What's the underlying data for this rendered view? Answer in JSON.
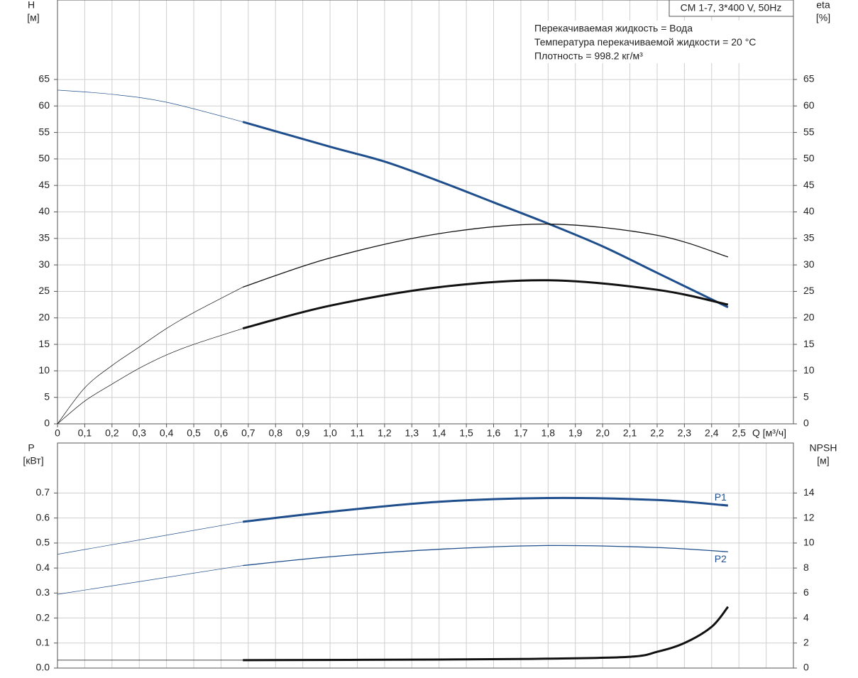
{
  "chart_data": [
    {
      "type": "line",
      "title": "CM 1-7, 3*400 V, 50Hz",
      "annotations": [
        "Перекачиваемая жидкость = Вода",
        "Температура перекачиваемой жидкости = 20 °C",
        "Плотность = 998.2 кг/м³"
      ],
      "y_label": "H",
      "y_unit": "[м]",
      "y2_label": "eta",
      "y2_unit": "[%]",
      "x_label": "Q [м³/ч]",
      "xlim": [
        0,
        2.7
      ],
      "xticks": [
        0,
        {
          "value": 0.1,
          "label": "0,1"
        },
        {
          "value": 0.2,
          "label": "0,2"
        },
        {
          "value": 0.3,
          "label": "0,3"
        },
        {
          "value": 0.4,
          "label": "0,4"
        },
        {
          "value": 0.5,
          "label": "0,5"
        },
        {
          "value": 0.6,
          "label": "0,6"
        },
        {
          "value": 0.7,
          "label": "0,7"
        },
        {
          "value": 0.8,
          "label": "0,8"
        },
        {
          "value": 0.9,
          "label": "0,9"
        },
        {
          "value": 1.0,
          "label": "1,0"
        },
        {
          "value": 1.1,
          "label": "1,1"
        },
        {
          "value": 1.2,
          "label": "1,2"
        },
        {
          "value": 1.3,
          "label": "1,3"
        },
        {
          "value": 1.4,
          "label": "1,4"
        },
        {
          "value": 1.5,
          "label": "1,5"
        },
        {
          "value": 1.6,
          "label": "1,6"
        },
        {
          "value": 1.7,
          "label": "1,7"
        },
        {
          "value": 1.8,
          "label": "1,8"
        },
        {
          "value": 1.9,
          "label": "1,9"
        },
        {
          "value": 2.0,
          "label": "2,0"
        },
        {
          "value": 2.1,
          "label": "2,1"
        },
        {
          "value": 2.2,
          "label": "2,2"
        },
        {
          "value": 2.3,
          "label": "2,3"
        },
        {
          "value": 2.4,
          "label": "2,4"
        },
        {
          "value": 2.5,
          "label": "2,5"
        }
      ],
      "ylim": [
        0,
        80
      ],
      "yticks": [
        0,
        5,
        10,
        15,
        20,
        25,
        30,
        35,
        40,
        45,
        50,
        55,
        60,
        65
      ],
      "y2lim": [
        0,
        80
      ],
      "y2ticks": [
        0,
        5,
        10,
        15,
        20,
        25,
        30,
        35,
        40,
        45,
        50,
        55,
        60,
        65
      ],
      "grid": true,
      "bold_from_x": 0.68,
      "series": [
        {
          "color": "#1f4e8c",
          "bold": true,
          "x": [
            0,
            0.2,
            0.4,
            0.68,
            1.0,
            1.2,
            1.4,
            1.6,
            1.8,
            2.0,
            2.2,
            2.46
          ],
          "values": [
            63,
            62.2,
            60.7,
            57,
            52.3,
            49.5,
            45.8,
            41.8,
            37.8,
            33.5,
            28.5,
            22
          ]
        },
        {
          "color": "#111111",
          "bold": false,
          "axis": "y2",
          "x": [
            0,
            0.1,
            0.2,
            0.3,
            0.4,
            0.5,
            0.68,
            1.0,
            1.4,
            1.8,
            2.2,
            2.46
          ],
          "values": [
            0,
            6.8,
            11,
            14.5,
            18,
            21,
            25.8,
            31.3,
            35.9,
            37.7,
            35.6,
            31.5
          ]
        },
        {
          "color": "#111111",
          "bold": true,
          "axis": "y2",
          "x": [
            0,
            0.1,
            0.2,
            0.3,
            0.4,
            0.5,
            0.68,
            1.0,
            1.4,
            1.8,
            2.2,
            2.46
          ],
          "values": [
            0,
            4.3,
            7.5,
            10.5,
            13,
            15,
            18,
            22.3,
            25.8,
            27.1,
            25.3,
            22.5
          ]
        }
      ]
    },
    {
      "type": "line",
      "y_label": "P",
      "y_unit": "[кВт]",
      "y2_label": "NPSH",
      "y2_unit": "[м]",
      "xlim": [
        0,
        2.7
      ],
      "xgrid": [
        0,
        0.1,
        0.2,
        0.3,
        0.4,
        0.5,
        0.6,
        0.7,
        0.8,
        0.9,
        1.0,
        1.1,
        1.2,
        1.3,
        1.4,
        1.5,
        1.6,
        1.7,
        1.8,
        1.9,
        2.0,
        2.1,
        2.2,
        2.3,
        2.4,
        2.5,
        2.6
      ],
      "ylim": [
        0,
        0.9
      ],
      "yticks": [
        {
          "value": 0,
          "label": "0.0"
        },
        0.1,
        0.2,
        0.3,
        0.4,
        0.5,
        0.6,
        0.7
      ],
      "y2lim": [
        0,
        18
      ],
      "y2ticks": [
        0,
        2,
        4,
        6,
        8,
        10,
        12,
        14
      ],
      "grid": true,
      "bold_from_x": 0.68,
      "series": [
        {
          "name": "P1",
          "color": "#1f4e8c",
          "bold": true,
          "x": [
            0,
            0.68,
            1.0,
            1.4,
            1.8,
            2.2,
            2.46
          ],
          "values": [
            0.455,
            0.585,
            0.625,
            0.665,
            0.68,
            0.672,
            0.65
          ]
        },
        {
          "name": "P2",
          "color": "#1f4e8c",
          "bold": false,
          "x": [
            0,
            0.68,
            1.0,
            1.4,
            1.8,
            2.2,
            2.46
          ],
          "values": [
            0.295,
            0.41,
            0.445,
            0.475,
            0.49,
            0.482,
            0.465
          ]
        },
        {
          "color": "#111111",
          "bold": true,
          "axis": "y2",
          "x": [
            0,
            0.68,
            1.4,
            1.8,
            2.1,
            2.2,
            2.3,
            2.4,
            2.46
          ],
          "values": [
            0.63,
            0.63,
            0.68,
            0.75,
            0.9,
            1.3,
            2.0,
            3.3,
            4.9
          ]
        }
      ]
    }
  ]
}
